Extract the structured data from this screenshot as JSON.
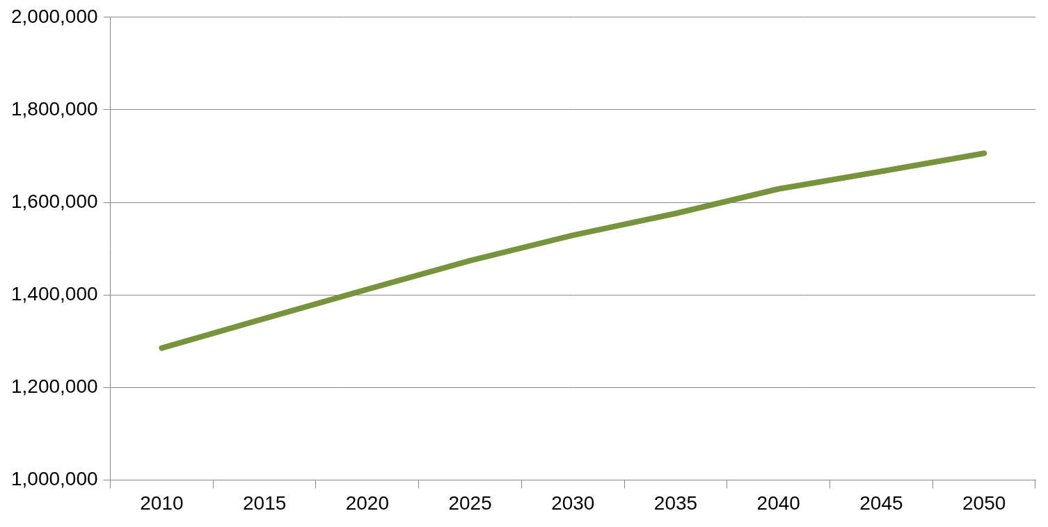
{
  "chart_data": {
    "type": "line",
    "categories": [
      "2010",
      "2015",
      "2020",
      "2025",
      "2030",
      "2035",
      "2040",
      "2045",
      "2050"
    ],
    "values": [
      1285000,
      1349000,
      1412000,
      1474000,
      1529000,
      1576000,
      1629000,
      1667000,
      1706000
    ],
    "color": "#77933c",
    "ylim": [
      1000000,
      2000000
    ],
    "yticks": [
      {
        "value": 1000000,
        "label": "1,000,000"
      },
      {
        "value": 1200000,
        "label": "1,200,000"
      },
      {
        "value": 1400000,
        "label": "1,400,000"
      },
      {
        "value": 1600000,
        "label": "1,600,000"
      },
      {
        "value": 1800000,
        "label": "1,800,000"
      },
      {
        "value": 2000000,
        "label": "2,000,000"
      }
    ],
    "grid": true
  }
}
